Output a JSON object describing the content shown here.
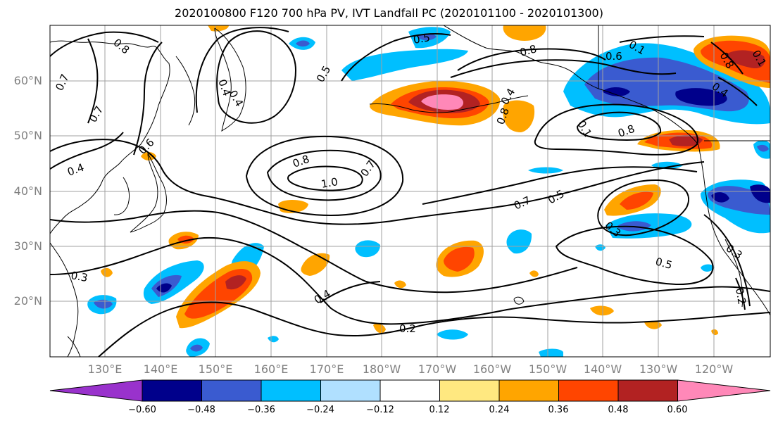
{
  "title": "2020100800 F120 700 hPa PV, IVT Landfall PC (2020101100 - 2020101300)",
  "lat_labels": [
    "60°N",
    "50°N",
    "40°N",
    "30°N",
    "20°N"
  ],
  "lon_labels": [
    "130°E",
    "140°E",
    "150°E",
    "160°E",
    "170°E",
    "180°W",
    "170°W",
    "160°W",
    "150°W",
    "140°W",
    "130°W",
    "120°W"
  ],
  "colorbar": {
    "ticks": [
      "−0.60",
      "−0.48",
      "−0.36",
      "−0.24",
      "−0.12",
      "0.12",
      "0.24",
      "0.36",
      "0.48",
      "0.60"
    ],
    "colors": [
      "#9932cc",
      "#00008b",
      "#3a5bd0",
      "#00bfff",
      "#b0e0ff",
      "#ffffff",
      "#ffe880",
      "#ffa500",
      "#ff4500",
      "#b22222",
      "#ff88b8"
    ]
  },
  "contour_labels": [
    "0.8",
    "0.7",
    "0.7",
    "0.6",
    "0.4",
    "0.3",
    "0.4",
    "0.4",
    "0.5",
    "0.5",
    "0.8",
    "1.0",
    "0.7",
    "0.8",
    "0.6",
    "0.1",
    "0.8",
    "0.8",
    "0.1",
    "0.4",
    "0.7",
    "0.5",
    "0.3",
    "0.5",
    "0.3",
    "0.2",
    "0.2",
    "0.4",
    "0.8",
    "0.4",
    "0.1"
  ]
}
